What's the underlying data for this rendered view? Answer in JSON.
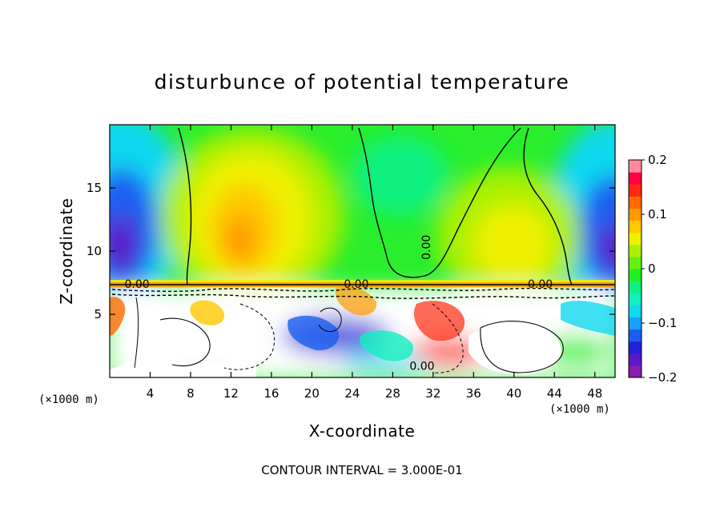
{
  "chart_data": {
    "type": "heatmap",
    "title": "disturbunce of potential temperature",
    "xlabel": "X-coordinate",
    "ylabel": "Z-coordinate",
    "x_unit": "(×1000 m)",
    "y_unit": "(×1000 m)",
    "xlim": [
      0,
      50
    ],
    "ylim": [
      0,
      20
    ],
    "xticks": [
      4,
      8,
      12,
      16,
      20,
      24,
      28,
      32,
      36,
      40,
      44,
      48
    ],
    "yticks": [
      5,
      10,
      15
    ],
    "colorbar": {
      "min": -0.2,
      "max": 0.2,
      "tick_values": [
        0.2,
        0.1,
        0,
        -0.1,
        -0.2
      ],
      "tick_labels": [
        "0.2",
        "0.1",
        "0",
        "−0.1",
        "−0.2"
      ],
      "colors": [
        "#8a1cb0",
        "#5a18c8",
        "#2222d8",
        "#1a5ef0",
        "#1aa0f8",
        "#10d8f0",
        "#10f0c0",
        "#10f080",
        "#22ee22",
        "#66f010",
        "#aaf000",
        "#eef000",
        "#ffc800",
        "#ff9a00",
        "#ff6a00",
        "#ff2a10",
        "#ff0040",
        "#ff8aa0"
      ]
    },
    "contour_labels": [
      {
        "text": "0.00",
        "x": 31.7,
        "z": 10.3
      },
      {
        "text": "0.00",
        "x": 2.7,
        "z": 7.1
      },
      {
        "text": "0.00",
        "x": 24.4,
        "z": 7.1
      },
      {
        "text": "0.00",
        "x": 42.6,
        "z": 7.1
      },
      {
        "text": "0.00",
        "x": 30.9,
        "z": 0.6
      }
    ],
    "annotation": "CONTOUR INTERVAL = 3.000E-01"
  }
}
